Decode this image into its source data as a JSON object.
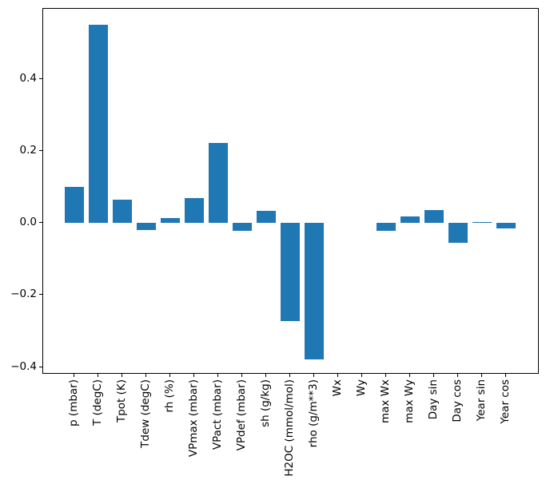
{
  "figure": {
    "background": "#ffffff",
    "kind": "matplotlib-bar-figure"
  },
  "chart_data": {
    "type": "bar",
    "title": "",
    "xlabel": "",
    "ylabel": "",
    "grid": false,
    "legend": null,
    "bar_color": "#1f77b4",
    "bar_width_units": 0.8,
    "xlim": [
      -1.3,
      19.4
    ],
    "ylim": [
      -0.421,
      0.594
    ],
    "xtick_rotation_deg": 90,
    "categories": [
      "p (mbar)",
      "T (degC)",
      "Tpot (K)",
      "Tdew (degC)",
      "rh (%)",
      "VPmax (mbar)",
      "VPact (mbar)",
      "VPdef (mbar)",
      "sh (g/kg)",
      "H2OC (mmol/mol)",
      "rho (g/m**3)",
      "Wx",
      "Wy",
      "max Wx",
      "max Wy",
      "Day sin",
      "Day cos",
      "Year sin",
      "Year cos"
    ],
    "values": [
      0.099,
      0.549,
      0.064,
      -0.019,
      0.013,
      0.068,
      0.222,
      -0.022,
      0.033,
      -0.273,
      -0.38,
      0.0,
      0.0,
      -0.021,
      0.017,
      0.036,
      -0.056,
      0.002,
      -0.016
    ],
    "yticks": [
      {
        "value": 0.4,
        "label": "0.4"
      },
      {
        "value": 0.2,
        "label": "0.2"
      },
      {
        "value": 0.0,
        "label": "0.0"
      },
      {
        "value": -0.2,
        "label": "−0.2"
      },
      {
        "value": -0.4,
        "label": "−0.4"
      }
    ]
  }
}
